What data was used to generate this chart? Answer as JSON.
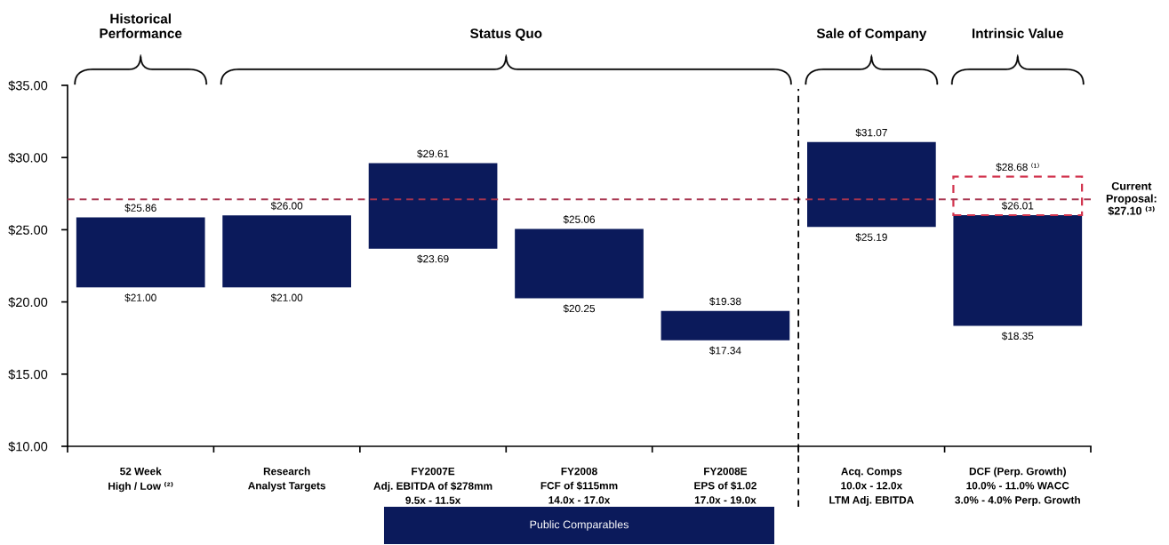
{
  "chart_data": {
    "type": "bar",
    "categories": [
      "52 Week\nHigh / Low ⁽²⁾",
      "Research\nAnalyst Targets",
      "FY2007E\nAdj. EBITDA of $278mm\n9.5x - 11.5x",
      "FY2008\nFCF of $115mm\n14.0x - 17.0x",
      "FY2008E\nEPS of $1.02\n17.0x - 19.0x",
      "Acq. Comps\n10.0x - 12.0x\nLTM Adj. EBITDA",
      "DCF (Perp. Growth)\n10.0% - 11.0% WACC\n3.0% - 4.0% Perp. Growth"
    ],
    "series": [
      {
        "color": "#0b1a5b",
        "base": [
          21.0,
          21.0,
          23.69,
          20.25,
          17.34,
          25.19,
          18.35
        ],
        "values": [
          4.86,
          5.0,
          5.92,
          4.81,
          2.04,
          5.88,
          7.66
        ]
      },
      {
        "color": "#d2344e",
        "line_style": "dashed",
        "base": [
          null,
          null,
          null,
          null,
          null,
          null,
          26.01
        ],
        "values": [
          null,
          null,
          null,
          null,
          null,
          null,
          2.67
        ]
      }
    ],
    "ylim": [
      10,
      35
    ],
    "yticks": [
      {
        "value": 10,
        "label": "$10.00"
      },
      {
        "value": 15,
        "label": "$15.00"
      },
      {
        "value": 20,
        "label": "$20.00"
      },
      {
        "value": 25,
        "label": "$25.00"
      },
      {
        "value": 30,
        "label": "$30.00"
      },
      {
        "value": 35,
        "label": "$35.00"
      }
    ],
    "ref_lines": [
      {
        "axis": "y",
        "value": 27.1,
        "label": "Current\nProposal:\n$27.10 ⁽³⁾",
        "color": "#a8354f",
        "line_style": "dashed"
      }
    ],
    "annotations": [
      "Historical\nPerformance",
      "Status Quo",
      "Sale of Company",
      "Intrinsic Value",
      "Public Comparables",
      {
        "text": "$25.86",
        "x": "52 Week\nHigh / Low ⁽²⁾",
        "y": 25.86
      },
      {
        "text": "$21.00",
        "x": "52 Week\nHigh / Low ⁽²⁾",
        "y": 21.0
      },
      {
        "text": "$26.00",
        "x": "Research\nAnalyst Targets",
        "y": 26.0
      },
      {
        "text": "$21.00",
        "x": "Research\nAnalyst Targets",
        "y": 21.0
      },
      {
        "text": "$29.61",
        "x": "FY2007E\nAdj. EBITDA of $278mm\n9.5x - 11.5x",
        "y": 29.61
      },
      {
        "text": "$23.69",
        "x": "FY2007E\nAdj. EBITDA of $278mm\n9.5x - 11.5x",
        "y": 23.69
      },
      {
        "text": "$25.06",
        "x": "FY2008\nFCF of $115mm\n14.0x - 17.0x",
        "y": 25.06
      },
      {
        "text": "$20.25",
        "x": "FY2008\nFCF of $115mm\n14.0x - 17.0x",
        "y": 20.25
      },
      {
        "text": "$19.38",
        "x": "FY2008E\nEPS of $1.02\n17.0x - 19.0x",
        "y": 19.38
      },
      {
        "text": "$17.34",
        "x": "FY2008E\nEPS of $1.02\n17.0x - 19.0x",
        "y": 17.34
      },
      {
        "text": "$31.07",
        "x": "Acq. Comps\n10.0x - 12.0x\nLTM Adj. EBITDA",
        "y": 31.07
      },
      {
        "text": "$25.19",
        "x": "Acq. Comps\n10.0x - 12.0x\nLTM Adj. EBITDA",
        "y": 25.19
      },
      {
        "text": "$28.68 ⁽¹⁾",
        "x": "DCF (Perp. Growth)\n10.0% - 11.0% WACC\n3.0% - 4.0% Perp. Growth",
        "y": 28.68
      },
      {
        "text": "$26.01",
        "x": "DCF (Perp. Growth)\n10.0% - 11.0% WACC\n3.0% - 4.0% Perp. Growth",
        "y": 26.01
      },
      {
        "text": "$18.35",
        "x": "DCF (Perp. Growth)\n10.0% - 11.0% WACC\n3.0% - 4.0% Perp. Growth",
        "y": 18.35
      }
    ]
  }
}
